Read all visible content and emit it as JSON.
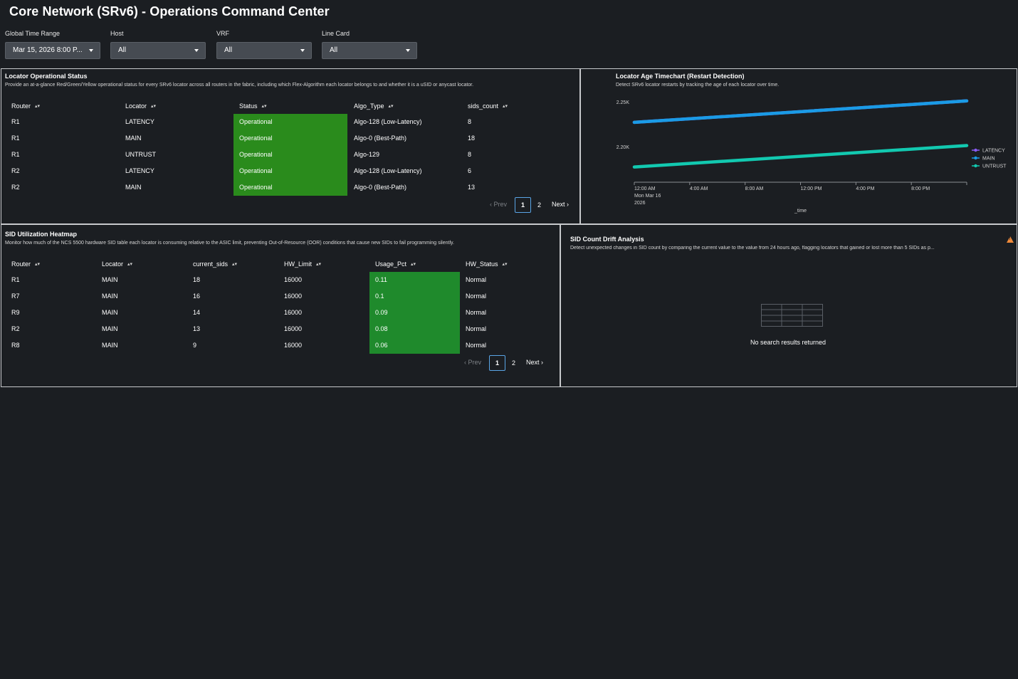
{
  "dashboard": {
    "title": "Core Network (SRv6) - Operations Command Center"
  },
  "filters": [
    {
      "label": "Global Time Range",
      "value": "Mar 15, 2026 8:00 P..."
    },
    {
      "label": "Host",
      "value": "All"
    },
    {
      "label": "VRF",
      "value": "All"
    },
    {
      "label": "Line Card",
      "value": "All"
    }
  ],
  "locator_status": {
    "title": "Locator Operational Status",
    "description": "Provide an at-a-glance Red/Green/Yellow operational status for every SRv6 locator across all routers in the fabric, including which Flex-Algorithm each locator belongs to and whether it is a uSID or anycast locator.",
    "columns": [
      "Router",
      "Locator",
      "Status",
      "Algo_Type",
      "sids_count"
    ],
    "rows": [
      [
        "R1",
        "LATENCY",
        "Operational",
        "Algo-128 (Low-Latency)",
        "8"
      ],
      [
        "R1",
        "MAIN",
        "Operational",
        "Algo-0 (Best-Path)",
        "18"
      ],
      [
        "R1",
        "UNTRUST",
        "Operational",
        "Algo-129",
        "8"
      ],
      [
        "R2",
        "LATENCY",
        "Operational",
        "Algo-128 (Low-Latency)",
        "6"
      ],
      [
        "R2",
        "MAIN",
        "Operational",
        "Algo-0 (Best-Path)",
        "13"
      ]
    ],
    "pager": {
      "prev": "Prev",
      "pages": [
        "1",
        "2"
      ],
      "next": "Next"
    }
  },
  "locator_age": {
    "title": "Locator Age Timechart (Restart Detection)",
    "description": "Detect SRv6 locator restarts by tracking the age of each locator over time."
  },
  "chart_data": {
    "type": "line",
    "title": "Locator Age Timechart (Restart Detection)",
    "xlabel": "_time",
    "ylabel": "",
    "x_ticks": [
      "12:00 AM\nMon Mar 16\n2026",
      "4:00 AM",
      "8:00 AM",
      "12:00 PM",
      "4:00 PM",
      "8:00 PM"
    ],
    "y_ticks": [
      "2.20K",
      "2.25K"
    ],
    "ylim": [
      2160,
      2258
    ],
    "x_range_hours": [
      0,
      24
    ],
    "legend_position": "right",
    "series": [
      {
        "name": "LATENCY",
        "color": "#8a5cf6",
        "points": [
          [
            0,
            2227
          ],
          [
            24,
            2251
          ]
        ]
      },
      {
        "name": "MAIN",
        "color": "#1a9be6",
        "points": [
          [
            0,
            2227
          ],
          [
            24,
            2251
          ]
        ]
      },
      {
        "name": "UNTRUST",
        "color": "#12c9b0",
        "points": [
          [
            0,
            2177
          ],
          [
            24,
            2201
          ]
        ]
      }
    ]
  },
  "sid_heatmap": {
    "title": "SID Utilization Heatmap",
    "description": "Monitor how much of the NCS 5500 hardware SID table each locator is consuming relative to the ASIC limit, preventing Out-of-Resource (OOR) conditions that cause new SIDs to fail programming silently.",
    "columns": [
      "Router",
      "Locator",
      "current_sids",
      "HW_Limit",
      "Usage_Pct",
      "HW_Status"
    ],
    "rows": [
      [
        "R1",
        "MAIN",
        "18",
        "16000",
        "0.11",
        "Normal"
      ],
      [
        "R7",
        "MAIN",
        "16",
        "16000",
        "0.1",
        "Normal"
      ],
      [
        "R9",
        "MAIN",
        "14",
        "16000",
        "0.09",
        "Normal"
      ],
      [
        "R2",
        "MAIN",
        "13",
        "16000",
        "0.08",
        "Normal"
      ],
      [
        "R8",
        "MAIN",
        "9",
        "16000",
        "0.06",
        "Normal"
      ]
    ],
    "pager": {
      "prev": "Prev",
      "pages": [
        "1",
        "2"
      ],
      "next": "Next"
    }
  },
  "sid_drift": {
    "title": "SID Count Drift Analysis",
    "description": "Detect unexpected changes in SID count by comparing the current value to the value from 24 hours ago, flagging locators that gained or lost more than 5 SIDs as p...",
    "empty_message": "No search results returned"
  },
  "icons": {
    "sort": "sort-icon",
    "caret": "chevron-down-icon",
    "warning": "warning-icon",
    "empty_table": "table-icon"
  },
  "colors": {
    "background": "#1b1e22",
    "status_green": "#2a8b1c",
    "usage_green": "#1f8a2c",
    "warning": "#f08a3a"
  }
}
